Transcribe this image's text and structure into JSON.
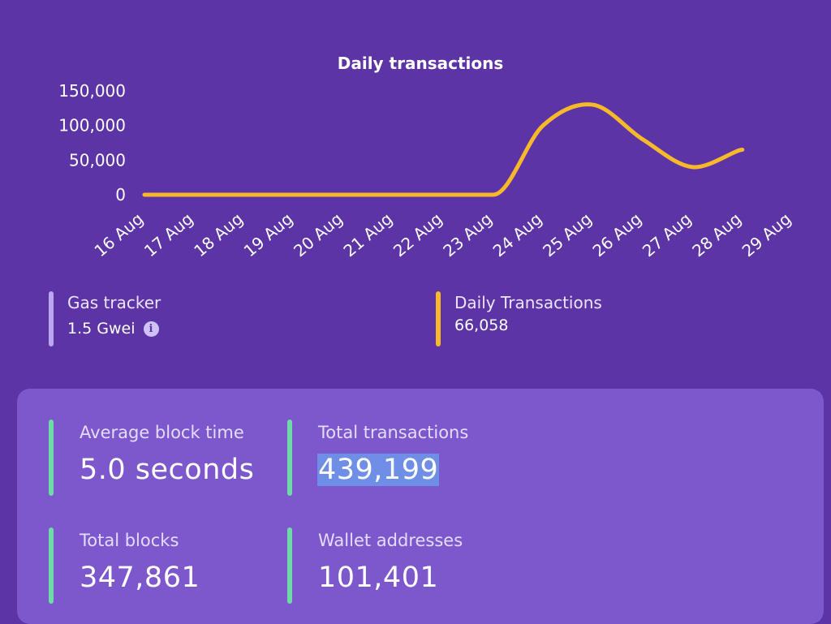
{
  "chart_data": {
    "type": "line",
    "title": "Daily transactions",
    "x": [
      "16 Aug",
      "17 Aug",
      "18 Aug",
      "19 Aug",
      "20 Aug",
      "21 Aug",
      "22 Aug",
      "23 Aug",
      "24 Aug",
      "25 Aug",
      "26 Aug",
      "27 Aug",
      "28 Aug",
      "29 Aug"
    ],
    "y_ticks": [
      "150,000",
      "100,000",
      "50,000",
      "0"
    ],
    "ylim": [
      0,
      150000
    ],
    "series": [
      {
        "color": "#f7b92a",
        "values": [
          0,
          0,
          0,
          0,
          0,
          0,
          0,
          0,
          100000,
          130000,
          80000,
          40000,
          65000,
          null
        ]
      }
    ],
    "grid": false
  },
  "gas_tracker": {
    "label": "Gas tracker",
    "value": "1.5 Gwei",
    "info_icon": "info-icon",
    "accent": "#b9a7f2"
  },
  "daily_transactions": {
    "label": "Daily Transactions",
    "value": "66,058",
    "accent": "#f7b92a"
  },
  "stats": {
    "accent": "#6fd9a8",
    "average_block_time": {
      "label": "Average block time",
      "value": "5.0 seconds"
    },
    "total_transactions": {
      "label": "Total transactions",
      "value": "439,199"
    },
    "total_blocks": {
      "label": "Total blocks",
      "value": "347,861"
    },
    "wallet_addresses": {
      "label": "Wallet addresses",
      "value": "101,401"
    }
  }
}
